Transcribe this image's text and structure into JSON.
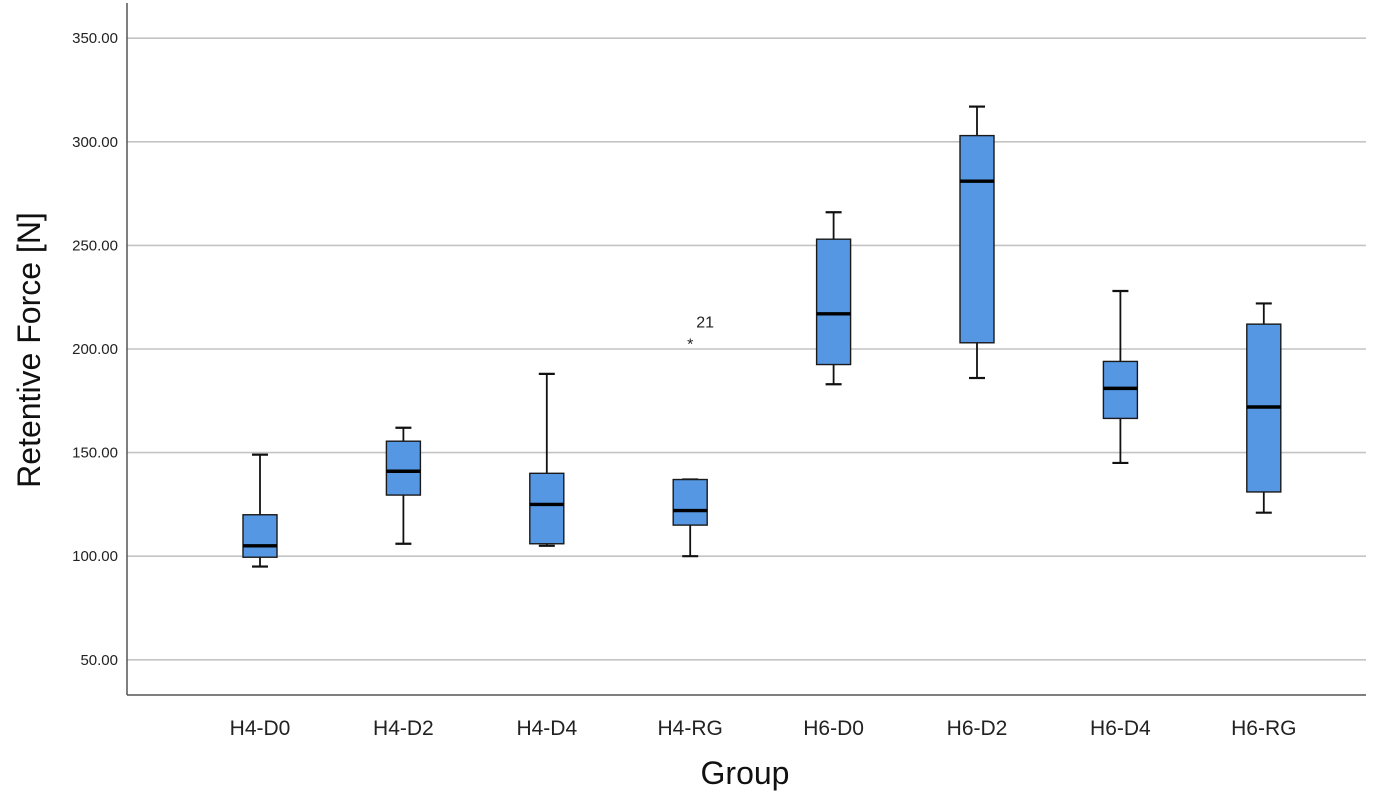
{
  "chart_data": {
    "type": "boxplot",
    "title": "",
    "xlabel": "Group",
    "ylabel": "Retentive Force [N]",
    "ylim": [
      33,
      367
    ],
    "yticks": [
      50,
      100,
      150,
      200,
      250,
      300,
      350
    ],
    "ytick_labels": [
      "50.00",
      "100.00",
      "150.00",
      "200.00",
      "250.00",
      "300.00",
      "350.00"
    ],
    "grid": true,
    "box_color": "#5597e2",
    "categories": [
      "H4-D0",
      "H4-D2",
      "H4-D4",
      "H4-RG",
      "H6-D0",
      "H6-D2",
      "H6-D4",
      "H6-RG"
    ],
    "boxes": [
      {
        "category": "H4-D0",
        "whisker_low": 95,
        "q1": 99.5,
        "median": 105,
        "q3": 120,
        "whisker_high": 149
      },
      {
        "category": "H4-D2",
        "whisker_low": 106,
        "q1": 129.5,
        "median": 141,
        "q3": 155.5,
        "whisker_high": 162
      },
      {
        "category": "H4-D4",
        "whisker_low": 105,
        "q1": 106,
        "median": 125,
        "q3": 140,
        "whisker_high": 188
      },
      {
        "category": "H4-RG",
        "whisker_low": 100,
        "q1": 115,
        "median": 122,
        "q3": 137,
        "whisker_high": 137
      },
      {
        "category": "H6-D0",
        "whisker_low": 183,
        "q1": 192.5,
        "median": 217,
        "q3": 253,
        "whisker_high": 266
      },
      {
        "category": "H6-D2",
        "whisker_low": 186,
        "q1": 203,
        "median": 281,
        "q3": 303,
        "whisker_high": 317
      },
      {
        "category": "H6-D4",
        "whisker_low": 145,
        "q1": 166.5,
        "median": 181,
        "q3": 194,
        "whisker_high": 228
      },
      {
        "category": "H6-RG",
        "whisker_low": 121,
        "q1": 131,
        "median": 172,
        "q3": 212,
        "whisker_high": 222
      }
    ],
    "outliers": [
      {
        "category": "H4-RG",
        "value": 204,
        "marker": "*",
        "label": "21"
      }
    ]
  }
}
